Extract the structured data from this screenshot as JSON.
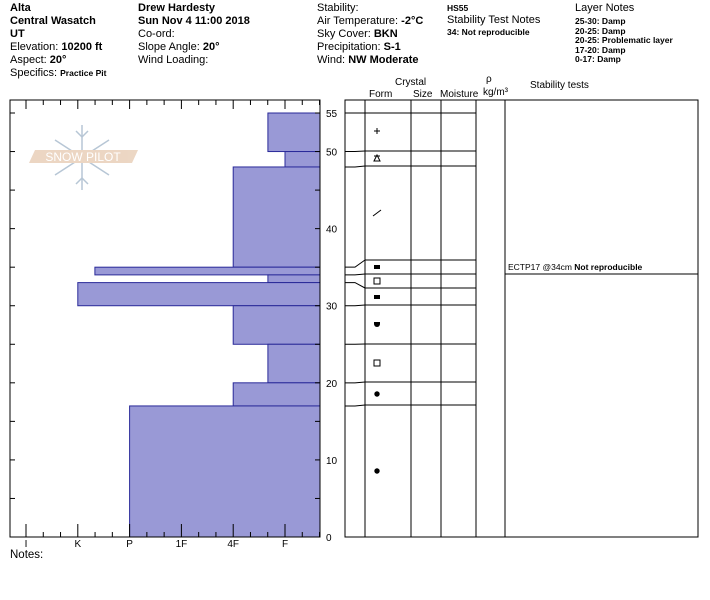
{
  "header": {
    "location": "Alta",
    "range": "Central Wasatch",
    "state": "UT",
    "elevation_label": "Elevation: ",
    "elevation": "10200 ft",
    "aspect_label": "Aspect: ",
    "aspect": "20°",
    "specifics_label": "Specifics: ",
    "specifics": "Practice Pit",
    "observer": "Drew Hardesty",
    "datetime": "Sun Nov 4 11:00 2018",
    "coord_label": "Co-ord:",
    "slope_label": "Slope Angle: ",
    "slope": "20°",
    "wind_loading_label": "Wind Loading:",
    "stability_label": "Stability:",
    "air_temp_label": "Air Temperature: ",
    "air_temp": "-2°C",
    "sky_label": "Sky Cover: ",
    "sky": "BKN",
    "precip_label": "Precipitation: ",
    "precip": "S-1",
    "wind_label": "Wind: ",
    "wind": " NW Moderate",
    "hs": "HS55",
    "stability_notes_title": "Stability Test Notes",
    "stability_notes": [
      "34: Not reproducible"
    ],
    "layer_notes_title": "Layer Notes",
    "layer_notes": [
      "25-30: Damp",
      "20-25: Damp",
      "20-25: Problematic layer",
      "17-20: Damp",
      "0-17: Damp"
    ]
  },
  "table": {
    "crystal": "Crystal",
    "form": "Form",
    "size": "Size",
    "moisture": "Moisture",
    "rho": "ρ",
    "density_unit": "kg/m³",
    "stability_tests": "Stability tests",
    "test_name": "ECTP17 @34cm",
    "test_note": "Not reproducible"
  },
  "notes_label": "Notes:",
  "logo_text": "SNOW PILOT",
  "colors": {
    "bar_fill": "#9999d6",
    "bar_stroke": "#2a2a99"
  },
  "chart_data": {
    "type": "bar",
    "orientation": "horizontal",
    "title": "",
    "xlabel": "",
    "ylabel": "",
    "x_tick_labels": [
      "I",
      "K",
      "P",
      "1F",
      "4F",
      "F"
    ],
    "y_tick_labels": [
      "0",
      "10",
      "20",
      "30",
      "40",
      "50",
      "55"
    ],
    "ylim": [
      0,
      55
    ],
    "layers": [
      {
        "top": 55,
        "bottom": 50,
        "hardness": "4F+",
        "hardness_index": 4.67,
        "form": "new-snow"
      },
      {
        "top": 50,
        "bottom": 48,
        "hardness": "F",
        "hardness_index": 5,
        "form": "mixed"
      },
      {
        "top": 48,
        "bottom": 35,
        "hardness": "4F",
        "hardness_index": 4,
        "form": "decomposing"
      },
      {
        "top": 35,
        "bottom": 34,
        "hardness": "K+",
        "hardness_index": 1.33,
        "form": "facets"
      },
      {
        "top": 34,
        "bottom": 33,
        "hardness": "4F+",
        "hardness_index": 4.67,
        "form": "faceted-rounded"
      },
      {
        "top": 33,
        "bottom": 30,
        "hardness": "K",
        "hardness_index": 1,
        "form": "facets"
      },
      {
        "top": 30,
        "bottom": 25,
        "hardness": "4F",
        "hardness_index": 4,
        "form": "rounding-facets"
      },
      {
        "top": 25,
        "bottom": 20,
        "hardness": "4F+",
        "hardness_index": 4.67,
        "form": "faceted-rounded"
      },
      {
        "top": 20,
        "bottom": 17,
        "hardness": "4F",
        "hardness_index": 4,
        "form": "rounds"
      },
      {
        "top": 17,
        "bottom": 0,
        "hardness": "P",
        "hardness_index": 2,
        "form": "rounds"
      }
    ]
  }
}
